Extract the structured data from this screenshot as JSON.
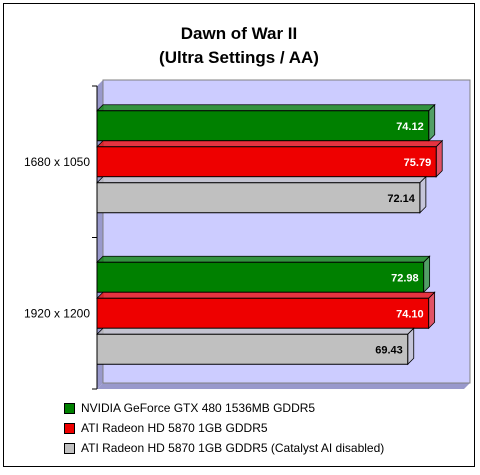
{
  "chart_data": {
    "type": "bar",
    "orientation": "horizontal",
    "title": [
      "Dawn of War II",
      "(Ultra Settings / AA)"
    ],
    "categories": [
      "1680 x 1050",
      "1920 x 1200"
    ],
    "series": [
      {
        "name": "NVIDIA GeForce GTX 480 1536MB GDDR5",
        "values": [
          74.12,
          72.98
        ],
        "color": "#008000",
        "label_color": "#ffffff"
      },
      {
        "name": "ATI Radeon HD 5870 1GB GDDR5",
        "values": [
          75.79,
          74.1
        ],
        "color": "#ee0000",
        "label_color": "#ffffff"
      },
      {
        "name": "ATI Radeon HD 5870 1GB GDDR5 (Catalyst AI disabled)",
        "values": [
          72.14,
          69.43
        ],
        "color": "#c0c0c0",
        "label_color": "#000000"
      }
    ],
    "value_labels": [
      [
        "74.12",
        "72.98"
      ],
      [
        "75.79",
        "74.10"
      ],
      [
        "72.14",
        "69.43"
      ]
    ],
    "plot_background": "#ccccff",
    "legend_position": "bottom",
    "grid": false
  }
}
